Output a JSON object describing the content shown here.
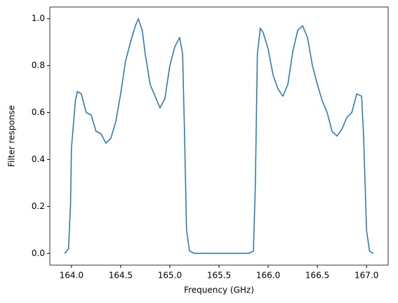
{
  "chart_data": {
    "type": "line",
    "xlabel": "Frequency (GHz)",
    "ylabel": "Filter response",
    "x": [
      163.93,
      163.97,
      163.99,
      164.0,
      164.02,
      164.04,
      164.06,
      164.1,
      164.15,
      164.2,
      164.25,
      164.3,
      164.35,
      164.4,
      164.45,
      164.5,
      164.55,
      164.6,
      164.65,
      164.68,
      164.72,
      164.75,
      164.8,
      164.85,
      164.9,
      164.95,
      165.0,
      165.05,
      165.1,
      165.13,
      165.15,
      165.17,
      165.2,
      165.25,
      165.8,
      165.85,
      165.87,
      165.89,
      165.92,
      165.95,
      166.0,
      166.05,
      166.1,
      166.15,
      166.2,
      166.25,
      166.3,
      166.35,
      166.4,
      166.45,
      166.5,
      166.55,
      166.6,
      166.65,
      166.7,
      166.75,
      166.8,
      166.85,
      166.9,
      166.95,
      166.97,
      167.0,
      167.03,
      167.07
    ],
    "series": [
      {
        "name": "Filter response",
        "color": "#1f77b4",
        "values": [
          0,
          0.02,
          0.2,
          0.45,
          0.55,
          0.65,
          0.69,
          0.68,
          0.6,
          0.59,
          0.52,
          0.51,
          0.47,
          0.49,
          0.56,
          0.68,
          0.82,
          0.9,
          0.97,
          1.0,
          0.95,
          0.85,
          0.72,
          0.67,
          0.62,
          0.66,
          0.8,
          0.88,
          0.92,
          0.85,
          0.5,
          0.1,
          0.01,
          0,
          0,
          0.01,
          0.3,
          0.85,
          0.96,
          0.94,
          0.87,
          0.76,
          0.7,
          0.67,
          0.72,
          0.86,
          0.95,
          0.97,
          0.92,
          0.8,
          0.72,
          0.65,
          0.6,
          0.52,
          0.5,
          0.53,
          0.58,
          0.6,
          0.68,
          0.67,
          0.5,
          0.1,
          0.01,
          0
        ]
      }
    ],
    "xlim": [
      163.78,
      167.22
    ],
    "xticks": [
      {
        "value": 164.0,
        "label": "164.0"
      },
      164.5,
      {
        "value": 165.0,
        "label": "165.0"
      },
      165.5,
      {
        "value": 166.0,
        "label": "166.0"
      },
      166.5,
      {
        "value": 167.0,
        "label": "167.0"
      }
    ],
    "ylim": [
      -0.05,
      1.05
    ],
    "yticks": [
      {
        "value": 0,
        "label": "0.0"
      },
      0.2,
      0.4,
      0.6,
      0.8,
      {
        "value": 1,
        "label": "1.0"
      }
    ]
  }
}
